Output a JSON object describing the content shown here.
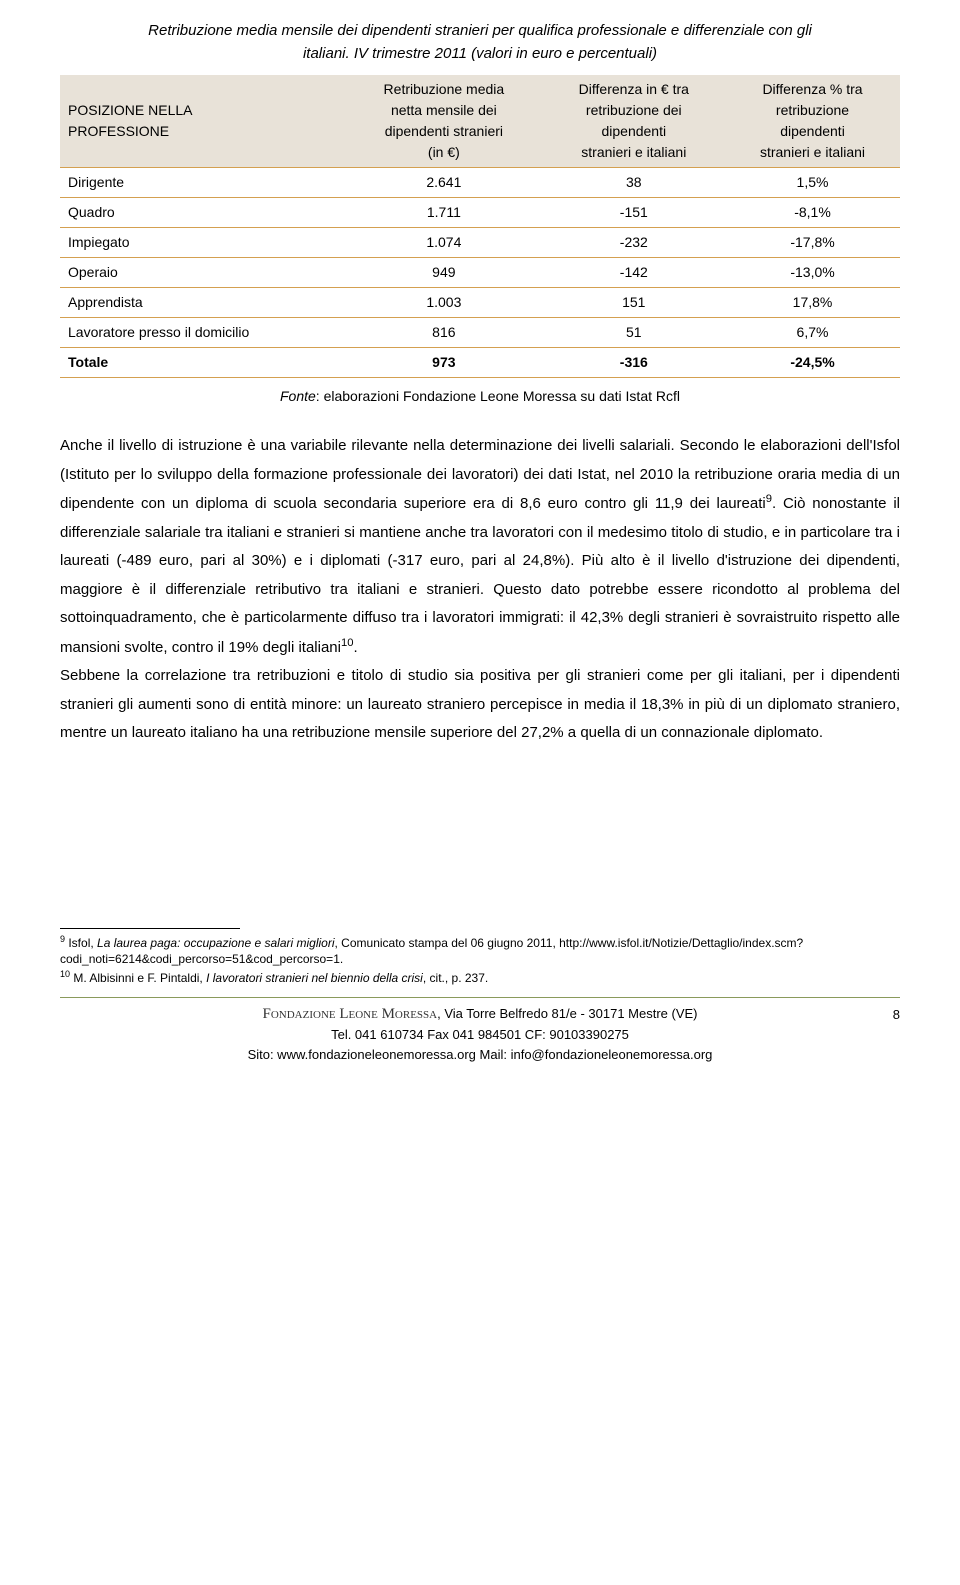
{
  "title": {
    "line1": "Retribuzione media mensile dei dipendenti stranieri per qualifica professionale e differenziale con gli",
    "line2": "italiani. IV trimestre 2011 (valori in euro e percentuali)"
  },
  "table": {
    "header": {
      "col0_line1": "POSIZIONE NELLA",
      "col0_line2": "PROFESSIONE",
      "col1_line1": "Retribuzione media",
      "col1_line2": "netta mensile dei",
      "col1_line3": "dipendenti stranieri",
      "col1_line4": "(in €)",
      "col2_line1": "Differenza in € tra",
      "col2_line2": "retribuzione dei",
      "col2_line3": "dipendenti",
      "col2_line4": "stranieri e italiani",
      "col3_line1": "Differenza % tra",
      "col3_line2": "retribuzione",
      "col3_line3": "dipendenti",
      "col3_line4": "stranieri e italiani"
    },
    "rows": [
      {
        "label": "Dirigente",
        "v1": "2.641",
        "v2": "38",
        "v3": "1,5%"
      },
      {
        "label": "Quadro",
        "v1": "1.711",
        "v2": "-151",
        "v3": "-8,1%"
      },
      {
        "label": "Impiegato",
        "v1": "1.074",
        "v2": "-232",
        "v3": "-17,8%"
      },
      {
        "label": "Operaio",
        "v1": "949",
        "v2": "-142",
        "v3": "-13,0%"
      },
      {
        "label": "Apprendista",
        "v1": "1.003",
        "v2": "151",
        "v3": "17,8%"
      },
      {
        "label": "Lavoratore presso il domicilio",
        "v1": "816",
        "v2": "51",
        "v3": "6,7%"
      }
    ],
    "total": {
      "label": "Totale",
      "v1": "973",
      "v2": "-316",
      "v3": "-24,5%"
    },
    "header_bg": "#e8e2d8",
    "border_color": "#d4a050"
  },
  "fonte": {
    "prefix": "Fonte",
    "text": ": elaborazioni Fondazione Leone Moressa su dati Istat Rcfl"
  },
  "body": {
    "p1a": "Anche il livello di istruzione è una variabile rilevante nella determinazione dei livelli salariali. Secondo le elaborazioni dell'Isfol (Istituto per lo sviluppo della formazione professionale dei lavoratori) dei dati Istat, nel 2010 la retribuzione oraria media di un dipendente con un diploma di scuola secondaria superiore era di 8,6 euro contro gli 11,9 dei laureati",
    "sup9": "9",
    "p1b": ". Ciò nonostante il differenziale salariale tra italiani e stranieri si mantiene anche tra lavoratori con il medesimo titolo di studio, e in particolare tra i laureati (-489 euro, pari al 30%) e i diplomati (-317 euro, pari al 24,8%). Più alto è il livello d'istruzione dei dipendenti, maggiore è il differenziale retributivo tra italiani e stranieri. Questo dato potrebbe essere ricondotto al problema del sottoinquadramento, che è particolarmente diffuso tra i lavoratori immigrati: il 42,3% degli stranieri è sovraistruito rispetto alle mansioni svolte, contro il 19% degli italiani",
    "sup10": "10",
    "p1c": ".",
    "p2": "Sebbene la correlazione tra retribuzioni e titolo di studio sia positiva per gli stranieri come per gli italiani, per i dipendenti stranieri gli aumenti sono di entità minore: un laureato straniero percepisce in media il 18,3% in più di un diplomato straniero, mentre un laureato italiano ha una retribuzione mensile superiore del 27,2% a quella di un connazionale diplomato."
  },
  "footnotes": {
    "f9_num": "9",
    "f9_author": " Isfol, ",
    "f9_title": "La laurea paga: occupazione e salari migliori",
    "f9_rest": ", Comunicato stampa del 06 giugno 2011, http://www.isfol.it/Notizie/Dettaglio/index.scm?codi_noti=6214&codi_percorso=51&cod_percorso=1.",
    "f10_num": "10",
    "f10_author": " M. Albisinni e F. Pintaldi, ",
    "f10_title": "I lavoratori stranieri nel biennio della crisi",
    "f10_rest": ", cit., p. 237."
  },
  "footer": {
    "org": "Fondazione Leone Moressa",
    "addr": ", Via Torre Belfredo 81/e - 30171 Mestre (VE)",
    "tel": "Tel. 041 610734 Fax 041 984501 CF: 90103390275",
    "sito": "Sito: www.fondazioneleonemoressa.org      Mail: info@fondazioneleonemoressa.org",
    "page": "8"
  }
}
